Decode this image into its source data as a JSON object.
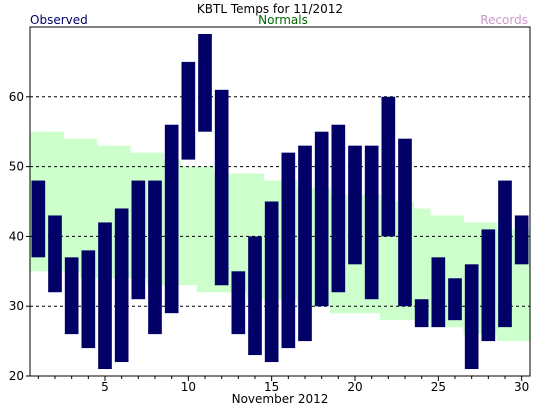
{
  "chart_data": {
    "type": "bar",
    "title": "KBTL Temps for 11/2012",
    "xlabel": "November 2012",
    "ylabel": "",
    "ylim": [
      20,
      70
    ],
    "xlim": [
      0.5,
      30.5
    ],
    "grid": "horizontal dashed at 30, 40, 50, 60",
    "y_ticks": [
      20,
      30,
      40,
      50,
      60
    ],
    "x_ticks": [
      5,
      10,
      15,
      20,
      25,
      30
    ],
    "legend": [
      {
        "name": "Observed",
        "color": "#000066",
        "position": "top-left"
      },
      {
        "name": "Normals",
        "color": "#006600",
        "position": "top-center"
      },
      {
        "name": "Records",
        "color": "#cc99cc",
        "position": "top-right"
      }
    ],
    "days": [
      1,
      2,
      3,
      4,
      5,
      6,
      7,
      8,
      9,
      10,
      11,
      12,
      13,
      14,
      15,
      16,
      17,
      18,
      19,
      20,
      21,
      22,
      23,
      24,
      25,
      26,
      27,
      28,
      29,
      30
    ],
    "series": [
      {
        "name": "Observed",
        "color": "#000066",
        "high": [
          48,
          43,
          37,
          38,
          42,
          44,
          48,
          48,
          56,
          65,
          69,
          61,
          35,
          40,
          45,
          52,
          53,
          55,
          56,
          53,
          53,
          60,
          54,
          31,
          37,
          34,
          36,
          41,
          48,
          43
        ],
        "low": [
          37,
          32,
          26,
          24,
          21,
          22,
          31,
          26,
          29,
          51,
          55,
          33,
          26,
          23,
          22,
          24,
          25,
          30,
          32,
          36,
          31,
          40,
          30,
          27,
          27,
          28,
          21,
          25,
          27,
          36
        ]
      },
      {
        "name": "Normals",
        "color": "#ccffcc",
        "high": [
          55,
          55,
          54,
          54,
          53,
          53,
          52,
          52,
          51,
          50,
          50,
          49,
          49,
          49,
          48,
          48,
          47,
          47,
          46,
          46,
          46,
          45,
          45,
          44,
          43,
          43,
          42,
          42,
          41,
          41
        ],
        "low": [
          35,
          35,
          35,
          34,
          34,
          34,
          34,
          33,
          33,
          33,
          32,
          32,
          32,
          31,
          31,
          31,
          30,
          30,
          29,
          29,
          29,
          28,
          28,
          28,
          27,
          27,
          26,
          26,
          25,
          25
        ]
      }
    ]
  }
}
